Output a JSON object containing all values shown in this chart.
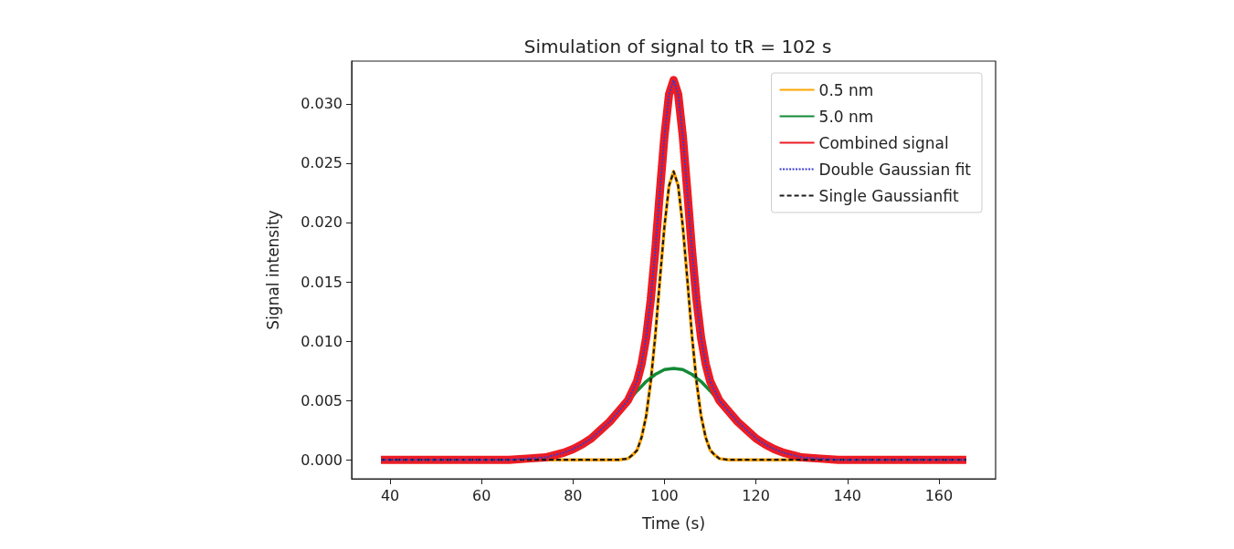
{
  "chart_data": {
    "type": "line",
    "title": "Simulation of signal to tR = 102 s",
    "xlabel": "Time (s)",
    "ylabel": "Signal intensity",
    "xlim": [
      31.6,
      172.4
    ],
    "xticks": [
      40,
      60,
      80,
      100,
      120,
      140,
      160
    ],
    "ylim": [
      -0.0016,
      0.0336
    ],
    "yticks": [
      {
        "value": 0,
        "label": "0.000"
      },
      {
        "value": 0.005,
        "label": "0.005"
      },
      {
        "value": 0.01,
        "label": "0.010"
      },
      {
        "value": 0.015,
        "label": "0.015"
      },
      {
        "value": 0.02,
        "label": "0.020"
      },
      {
        "value": 0.025,
        "label": "0.025"
      },
      {
        "value": 0.03,
        "label": "0.030"
      }
    ],
    "grid": false,
    "legend": "top right",
    "marker": "none",
    "series": [
      {
        "name": "0.5 nm",
        "color": "#ffa500",
        "line_style": "solid",
        "x": [
          70,
          74,
          78,
          80,
          82,
          84,
          86,
          88,
          90,
          92,
          93,
          94,
          95,
          96,
          97,
          98,
          99,
          100,
          101,
          102,
          103,
          104,
          105,
          106,
          107,
          108,
          109,
          110,
          111,
          112,
          114,
          116,
          118,
          120,
          122,
          124,
          126,
          130,
          134
        ],
        "values": [
          0,
          0,
          0,
          0,
          0,
          0,
          0,
          0,
          0,
          0.0001,
          0.0004,
          0.0008,
          0.0019,
          0.0037,
          0.0066,
          0.0105,
          0.0152,
          0.0197,
          0.0231,
          0.0243,
          0.0231,
          0.0197,
          0.0152,
          0.0105,
          0.0066,
          0.0037,
          0.0019,
          0.0008,
          0.0004,
          0.0001,
          0,
          0,
          0,
          0,
          0,
          0,
          0,
          0,
          0
        ]
      },
      {
        "name": "5.0 nm",
        "color": "#138a36",
        "line_style": "solid",
        "x": [
          92,
          94,
          96,
          98,
          100,
          102,
          104,
          106,
          108,
          110,
          112
        ],
        "values": [
          0.0049,
          0.0058,
          0.0066,
          0.0072,
          0.0076,
          0.0077,
          0.0076,
          0.0072,
          0.0066,
          0.0058,
          0.0049
        ]
      },
      {
        "name": "Combined signal",
        "color": "#ec1c24",
        "line_style": "solid",
        "x": [
          38,
          50,
          60,
          66,
          70,
          74,
          78,
          80,
          82,
          84,
          86,
          88,
          90,
          92,
          93,
          94,
          95,
          96,
          97,
          98,
          99,
          100,
          101,
          102,
          103,
          104,
          105,
          106,
          107,
          108,
          109,
          110,
          111,
          112,
          114,
          116,
          118,
          120,
          122,
          124,
          126,
          130,
          134,
          138,
          150,
          166
        ],
        "values": [
          0,
          0,
          0,
          0,
          0.0001,
          0.0002,
          0.0006,
          0.0009,
          0.0013,
          0.0018,
          0.0025,
          0.0032,
          0.0041,
          0.005,
          0.0058,
          0.0066,
          0.0081,
          0.0103,
          0.0135,
          0.0177,
          0.0226,
          0.0273,
          0.0308,
          0.032,
          0.0308,
          0.0273,
          0.0226,
          0.0177,
          0.0135,
          0.0103,
          0.0081,
          0.0066,
          0.0058,
          0.005,
          0.0041,
          0.0032,
          0.0025,
          0.0018,
          0.0013,
          0.0009,
          0.0006,
          0.0002,
          0.0001,
          0,
          0,
          0
        ]
      },
      {
        "name": "Double Gaussian fit",
        "color": "#3a3ad0",
        "line_style": "dotted",
        "x": [
          38,
          50,
          60,
          66,
          70,
          74,
          78,
          80,
          82,
          84,
          86,
          88,
          90,
          92,
          93,
          94,
          95,
          96,
          97,
          98,
          99,
          100,
          101,
          102,
          103,
          104,
          105,
          106,
          107,
          108,
          109,
          110,
          111,
          112,
          114,
          116,
          118,
          120,
          122,
          124,
          126,
          130,
          134,
          138,
          150,
          166
        ],
        "values": [
          0,
          0,
          0,
          0,
          0.0001,
          0.0002,
          0.0006,
          0.0009,
          0.0013,
          0.0018,
          0.0025,
          0.0032,
          0.0041,
          0.005,
          0.0058,
          0.0066,
          0.0081,
          0.0103,
          0.0135,
          0.0177,
          0.0226,
          0.0273,
          0.0308,
          0.032,
          0.0308,
          0.0273,
          0.0226,
          0.0177,
          0.0135,
          0.0103,
          0.0081,
          0.0066,
          0.0058,
          0.005,
          0.0041,
          0.0032,
          0.0025,
          0.0018,
          0.0013,
          0.0009,
          0.0006,
          0.0002,
          0.0001,
          0,
          0,
          0
        ]
      },
      {
        "name": "Single Gaussianfit",
        "color": "#1a1a1a",
        "line_style": "dashed",
        "x": [
          38,
          50,
          60,
          66,
          70,
          74,
          78,
          80,
          82,
          84,
          86,
          88,
          90,
          92,
          93,
          94,
          95,
          96,
          97,
          98,
          99,
          100,
          101,
          102,
          103,
          104,
          105,
          106,
          107,
          108,
          109,
          110,
          111,
          112,
          114,
          116,
          118,
          120,
          122,
          124,
          126,
          130,
          134,
          138,
          150,
          166
        ],
        "values": [
          0,
          0,
          0,
          0,
          0,
          0,
          0,
          0,
          0,
          0,
          0,
          0,
          0,
          0.0001,
          0.0004,
          0.0008,
          0.0019,
          0.0037,
          0.0066,
          0.0105,
          0.0152,
          0.0197,
          0.0231,
          0.0243,
          0.0231,
          0.0197,
          0.0152,
          0.0105,
          0.0066,
          0.0037,
          0.0019,
          0.0008,
          0.0004,
          0.0001,
          0,
          0,
          0,
          0,
          0,
          0,
          0,
          0,
          0,
          0,
          0,
          0
        ]
      }
    ]
  }
}
